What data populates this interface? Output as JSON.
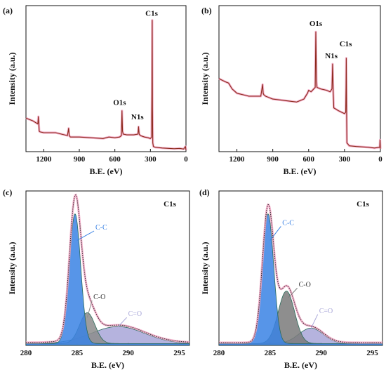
{
  "chart_data": [
    {
      "panel": "(a)",
      "type": "line",
      "xlabel": "B.E. (eV)",
      "ylabel": "Intensity (a.u.)",
      "xlim": [
        1350,
        0
      ],
      "ylim": [
        0,
        100
      ],
      "xticks": [
        "1200",
        "900",
        "600",
        "300",
        "0"
      ],
      "xtick_values": [
        1200,
        900,
        600,
        300,
        0
      ],
      "series_color": "#8b2a1a",
      "envelope_color": "#f2a6c4",
      "x": [
        1350,
        1290,
        1250,
        1245,
        1238,
        1230,
        1200,
        1100,
        1000,
        990,
        985,
        975,
        900,
        800,
        700,
        650,
        600,
        560,
        545,
        540,
        535,
        530,
        500,
        440,
        405,
        400,
        395,
        385,
        350,
        320,
        300,
        290,
        287,
        285,
        283,
        280,
        275,
        260,
        200,
        100,
        50,
        20,
        5,
        0
      ],
      "y": [
        23,
        21,
        19,
        24,
        14,
        13.5,
        13,
        13,
        11,
        16,
        11,
        10,
        10,
        9.5,
        9,
        10,
        9.5,
        10,
        11,
        28,
        14,
        12,
        11.5,
        11.5,
        12,
        17,
        12,
        11,
        10,
        9.5,
        9,
        10,
        40,
        90,
        30,
        6,
        3.5,
        3,
        2.5,
        2,
        2.2,
        1.8,
        3.5,
        1
      ],
      "annotations": [
        {
          "text": "C1s",
          "x": 290,
          "y": 93
        },
        {
          "text": "O1s",
          "x": 560,
          "y": 32
        },
        {
          "text": "N1s",
          "x": 410,
          "y": 22
        }
      ]
    },
    {
      "panel": "(b)",
      "type": "line",
      "xlabel": "B.E. (eV)",
      "ylabel": "Intensity (a.u.)",
      "xlim": [
        1350,
        0
      ],
      "ylim": [
        0,
        100
      ],
      "xticks": [
        "1200",
        "900",
        "600",
        "300",
        "0"
      ],
      "xtick_values": [
        1200,
        900,
        600,
        300,
        0
      ],
      "series_color": "#8b2a1a",
      "envelope_color": "#f2a6c4",
      "x": [
        1350,
        1300,
        1270,
        1240,
        1200,
        1100,
        1000,
        985,
        980,
        975,
        960,
        900,
        800,
        700,
        640,
        610,
        600,
        580,
        545,
        540,
        535,
        530,
        500,
        450,
        420,
        405,
        400,
        395,
        390,
        350,
        300,
        290,
        287,
        285,
        283,
        280,
        260,
        200,
        100,
        50,
        5,
        3,
        0
      ],
      "y": [
        50,
        48,
        47,
        43,
        40,
        38,
        38,
        46,
        40,
        39,
        38,
        36,
        35,
        34,
        36,
        40,
        42,
        41,
        44,
        82,
        48,
        44,
        43,
        42,
        41,
        43,
        60,
        42,
        30,
        28,
        26,
        27,
        45,
        64,
        32,
        6,
        4,
        3.5,
        3,
        2.5,
        3,
        8,
        2
      ],
      "annotations": [
        {
          "text": "O1s",
          "x": 540,
          "y": 86
        },
        {
          "text": "N1s",
          "x": 410,
          "y": 64
        },
        {
          "text": "C1s",
          "x": 290,
          "y": 72
        }
      ]
    },
    {
      "panel": "(c)",
      "type": "line",
      "title": "C1s",
      "xlabel": "B.E. (eV)",
      "ylabel": "Intensity (a.u.)",
      "xlim": [
        280,
        296
      ],
      "ylim": [
        0,
        100
      ],
      "xticks": [
        "280",
        "285",
        "290",
        "295"
      ],
      "xtick_values": [
        280,
        285,
        290,
        295
      ],
      "components": [
        {
          "name": "C-C",
          "center": 284.8,
          "height": 84,
          "width": 0.55,
          "color": "#3a82e4"
        },
        {
          "name": "C-O",
          "center": 286.0,
          "height": 20,
          "width": 0.75,
          "color": "#8c8c8c"
        },
        {
          "name": "C=O",
          "center": 289.0,
          "height": 11,
          "width": 2.6,
          "color": "#a8a6d8"
        }
      ],
      "labels": [
        {
          "text": "C-C",
          "x": 286.8,
          "y": 75,
          "ax": 285.0,
          "ay": 68
        },
        {
          "text": "C-O",
          "x": 286.6,
          "y": 30,
          "ax": 286.0,
          "ay": 18
        },
        {
          "text": "C=O",
          "x": 290.0,
          "y": 19,
          "ax": 289.0,
          "ay": 12
        }
      ],
      "envelope_color": "#f2a6c4"
    },
    {
      "panel": "(d)",
      "type": "line",
      "title": "C1s",
      "xlabel": "B.E. (eV)",
      "ylabel": "Intensity (a.u.)",
      "xlim": [
        280,
        296
      ],
      "ylim": [
        0,
        100
      ],
      "xticks": [
        "280",
        "285",
        "290",
        "295"
      ],
      "xtick_values": [
        280,
        285,
        290,
        295
      ],
      "components": [
        {
          "name": "C-C",
          "center": 284.8,
          "height": 84,
          "width": 0.55,
          "color": "#3a82e4"
        },
        {
          "name": "C-O",
          "center": 286.6,
          "height": 34,
          "width": 0.8,
          "color": "#7a7a7a"
        },
        {
          "name": "C=O",
          "center": 289.0,
          "height": 10,
          "width": 1.2,
          "color": "#a8a6d8"
        }
      ],
      "labels": [
        {
          "text": "C-C",
          "x": 286.2,
          "y": 78,
          "ax": 285.0,
          "ay": 68
        },
        {
          "text": "C-O",
          "x": 287.8,
          "y": 38,
          "ax": 286.8,
          "ay": 31
        },
        {
          "text": "C=O",
          "x": 289.8,
          "y": 21,
          "ax": 289.0,
          "ay": 11
        }
      ],
      "envelope_color": "#f2a6c4"
    }
  ]
}
